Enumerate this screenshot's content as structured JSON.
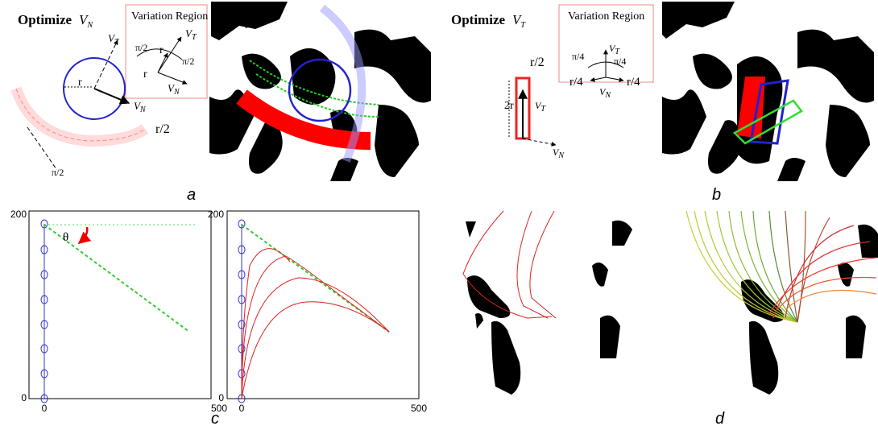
{
  "panel_a": {
    "heading": "Optimize",
    "heading_symbol": {
      "base": "V",
      "sub": "N"
    },
    "inset_title": "Variation Region",
    "inset_labels": [
      {
        "base": "V",
        "sub": "T"
      },
      "π/2",
      "r",
      "π/2",
      "r",
      {
        "base": "V",
        "sub": "N"
      }
    ],
    "labels": [
      {
        "base": "V",
        "sub": "T"
      },
      "r",
      {
        "base": "V",
        "sub": "N"
      },
      "r/2",
      "π/2"
    ],
    "caption": "a"
  },
  "panel_b": {
    "heading": "Optimize",
    "heading_symbol": {
      "base": "V",
      "sub": "T"
    },
    "inset_title": "Variation Region",
    "inset_labels": [
      {
        "base": "V",
        "sub": "T"
      },
      "π/4",
      "π/4",
      "r/4",
      "r/4",
      {
        "base": "V",
        "sub": "N"
      }
    ],
    "labels": [
      "r/2",
      "2r",
      {
        "base": "V",
        "sub": "T"
      },
      {
        "base": "V",
        "sub": "N"
      }
    ],
    "caption": "b"
  },
  "panel_c": {
    "plots": [
      {
        "yticks": [
          "200",
          "0"
        ],
        "xticks": [
          "0",
          "500"
        ],
        "angle_label": "θ"
      },
      {
        "yticks": [
          "200",
          "0"
        ],
        "xticks": [
          "0",
          "500"
        ]
      }
    ],
    "caption": "c"
  },
  "panel_d": {
    "caption": "d"
  }
}
